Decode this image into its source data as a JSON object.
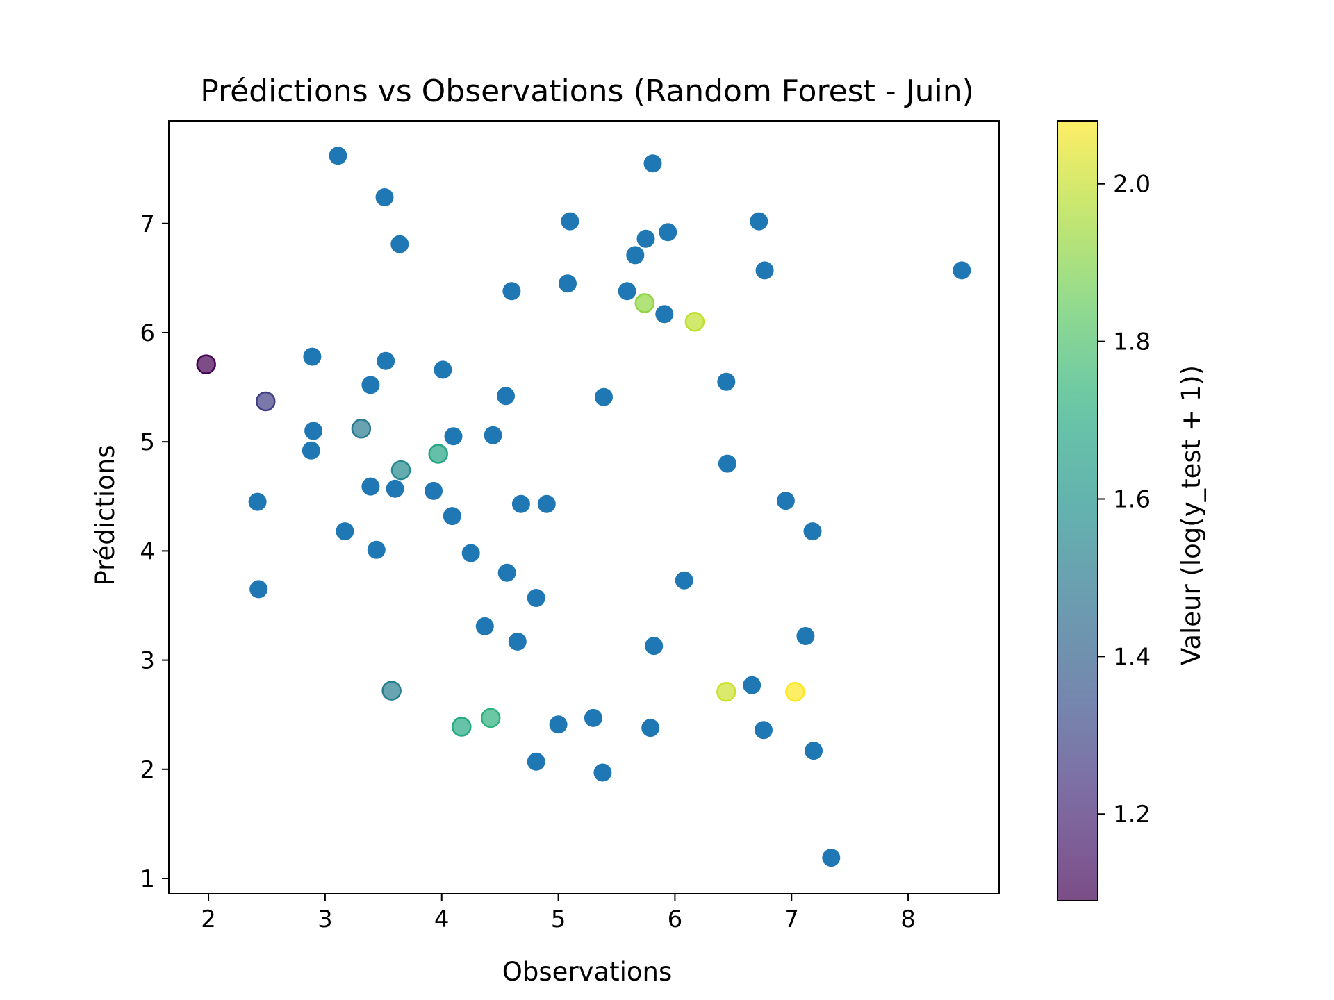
{
  "chart_data": {
    "type": "scatter",
    "title": "Prédictions vs Observations (Random Forest - Juin)",
    "xlabel": "Observations",
    "ylabel": "Prédictions",
    "xlim": [
      1.66,
      8.78
    ],
    "ylim": [
      0.86,
      7.94
    ],
    "xticks": [
      2,
      3,
      4,
      5,
      6,
      7,
      8
    ],
    "yticks": [
      1,
      2,
      3,
      4,
      5,
      6,
      7
    ],
    "grid": false,
    "default_color": "#1f77b4",
    "colorbar": {
      "label": "Valeur (log(y_test + 1))",
      "range": [
        1.09,
        2.08
      ],
      "ticks": [
        1.2,
        1.4,
        1.6,
        1.8,
        2.0
      ],
      "colormap": "viridis",
      "alpha": 0.7
    },
    "series": [
      {
        "points": [
          [
            3.11,
            7.62
          ],
          [
            5.81,
            7.55
          ],
          [
            3.51,
            7.24
          ],
          [
            5.1,
            7.02
          ],
          [
            6.72,
            7.02
          ],
          [
            5.94,
            6.92
          ],
          [
            5.75,
            6.86
          ],
          [
            3.64,
            6.81
          ],
          [
            5.66,
            6.71
          ],
          [
            6.77,
            6.57
          ],
          [
            8.46,
            6.57
          ],
          [
            5.08,
            6.45
          ],
          [
            4.6,
            6.38
          ],
          [
            5.59,
            6.38
          ],
          [
            5.91,
            6.17
          ],
          [
            2.89,
            5.78
          ],
          [
            3.52,
            5.74
          ],
          [
            4.01,
            5.66
          ],
          [
            3.39,
            5.52
          ],
          [
            6.44,
            5.55
          ],
          [
            4.55,
            5.42
          ],
          [
            5.39,
            5.41
          ],
          [
            2.9,
            5.1
          ],
          [
            4.1,
            5.05
          ],
          [
            4.44,
            5.06
          ],
          [
            2.88,
            4.92
          ],
          [
            6.45,
            4.8
          ],
          [
            3.39,
            4.59
          ],
          [
            3.6,
            4.57
          ],
          [
            3.93,
            4.55
          ],
          [
            2.42,
            4.45
          ],
          [
            4.68,
            4.43
          ],
          [
            4.9,
            4.43
          ],
          [
            6.95,
            4.46
          ],
          [
            4.09,
            4.32
          ],
          [
            3.17,
            4.18
          ],
          [
            7.18,
            4.18
          ],
          [
            3.44,
            4.01
          ],
          [
            4.25,
            3.98
          ],
          [
            4.56,
            3.8
          ],
          [
            6.08,
            3.73
          ],
          [
            2.43,
            3.65
          ],
          [
            4.81,
            3.57
          ],
          [
            4.37,
            3.31
          ],
          [
            7.12,
            3.22
          ],
          [
            4.65,
            3.17
          ],
          [
            5.82,
            3.13
          ],
          [
            6.66,
            2.77
          ],
          [
            5.3,
            2.47
          ],
          [
            5.0,
            2.41
          ],
          [
            5.79,
            2.38
          ],
          [
            6.76,
            2.36
          ],
          [
            7.19,
            2.17
          ],
          [
            4.81,
            2.07
          ],
          [
            5.38,
            1.97
          ],
          [
            7.34,
            1.19
          ]
        ]
      },
      {
        "colored_by": "Valeur (log(y_test + 1))",
        "points": [
          [
            1.98,
            5.71,
            1.09
          ],
          [
            2.49,
            5.37,
            1.28
          ],
          [
            3.31,
            5.12,
            1.5
          ],
          [
            3.65,
            4.74,
            1.56
          ],
          [
            3.97,
            4.89,
            1.68
          ],
          [
            3.57,
            2.72,
            1.52
          ],
          [
            4.17,
            2.39,
            1.7
          ],
          [
            4.42,
            2.47,
            1.73
          ],
          [
            5.74,
            6.27,
            1.92
          ],
          [
            6.17,
            6.1,
            1.99
          ],
          [
            6.44,
            2.71,
            2.01
          ],
          [
            7.03,
            2.71,
            2.08
          ]
        ]
      }
    ]
  }
}
